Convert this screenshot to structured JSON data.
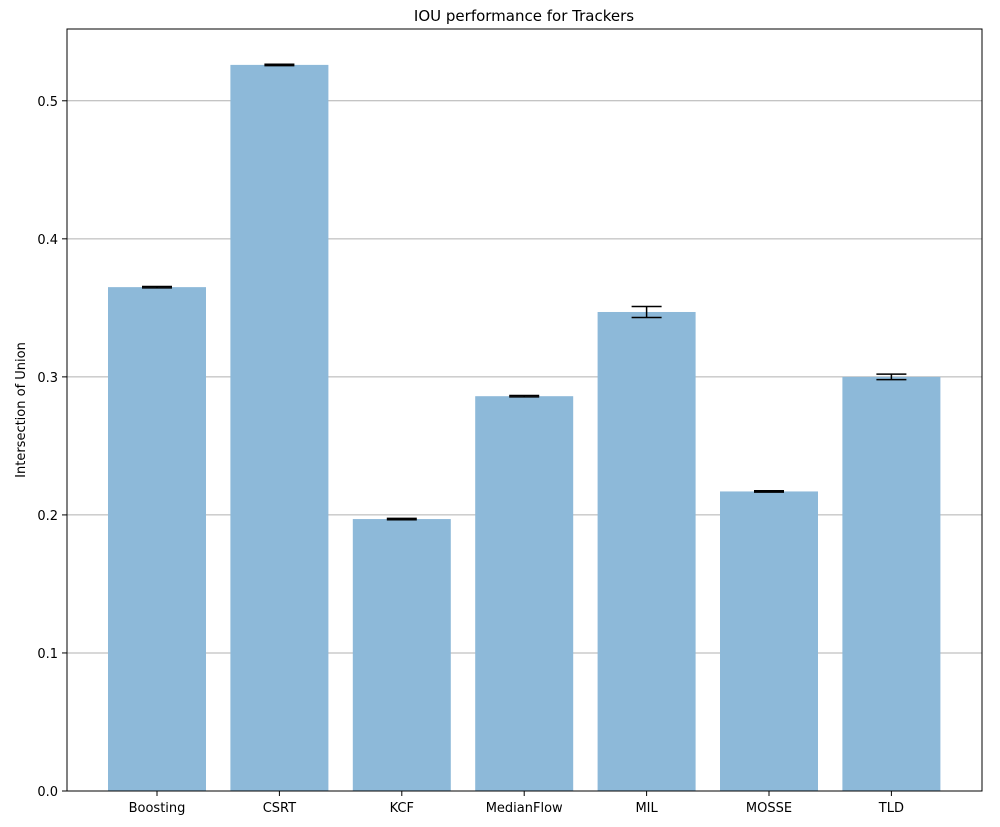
{
  "chart_data": {
    "type": "bar",
    "title": "IOU performance for Trackers",
    "xlabel": "",
    "ylabel": "Intersection of Union",
    "categories": [
      "Boosting",
      "CSRT",
      "KCF",
      "MedianFlow",
      "MIL",
      "MOSSE",
      "TLD"
    ],
    "values": [
      0.365,
      0.526,
      0.197,
      0.286,
      0.347,
      0.217,
      0.3
    ],
    "errors": [
      0.0005,
      0.0005,
      0.0005,
      0.0005,
      0.004,
      0.0005,
      0.002
    ],
    "ylim": [
      0,
      0.552
    ],
    "yticks": [
      0.0,
      0.1,
      0.2,
      0.3,
      0.4,
      0.5
    ],
    "ytick_labels": [
      "0.0",
      "0.1",
      "0.2",
      "0.3",
      "0.4",
      "0.5"
    ],
    "grid": "y",
    "legend": "none",
    "colors": {
      "bar": "#8db9d9",
      "grid": "#b0b0b0",
      "error_bar": "#000000",
      "axes": "#000000"
    }
  }
}
